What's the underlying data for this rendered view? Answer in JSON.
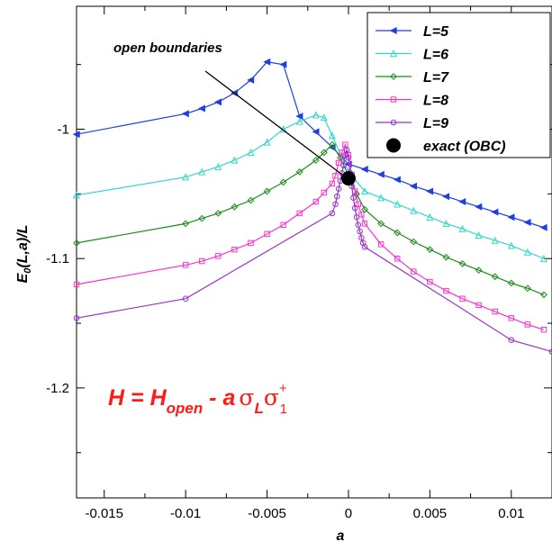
{
  "chart_data": {
    "type": "line",
    "xlabel": "a",
    "ylabel": "E0(L,a)/L",
    "xlim": [
      -0.0167,
      0.0125
    ],
    "ylim": [
      -1.285,
      -0.905
    ],
    "x_ticks": [
      -0.015,
      -0.01,
      -0.005,
      0,
      0.005,
      0.01
    ],
    "x_tick_labels": [
      "-0.015",
      "-0.01",
      "-0.005",
      "0",
      "0.005",
      "0.01"
    ],
    "y_ticks": [
      -1.0,
      -1.1,
      -1.2
    ],
    "y_tick_labels": [
      "-1",
      "-1.1",
      "-1.2"
    ],
    "legend_position": "top-right",
    "series": [
      {
        "name": "L=5",
        "color": "#1f3fe0",
        "marker": "triangle-left",
        "x": [
          -0.0167,
          -0.01,
          -0.009,
          -0.008,
          -0.007,
          -0.006,
          -0.005,
          -0.004,
          -0.003,
          -0.002,
          -0.001,
          0,
          0.001,
          0.002,
          0.003,
          0.004,
          0.005,
          0.006,
          0.007,
          0.008,
          0.009,
          0.01,
          0.011,
          0.012
        ],
        "y": [
          -1.004,
          -0.988,
          -0.984,
          -0.979,
          -0.972,
          -0.962,
          -0.948,
          -0.95,
          -0.99,
          -1.002,
          -1.014,
          -1.027,
          -1.031,
          -1.035,
          -1.039,
          -1.044,
          -1.048,
          -1.052,
          -1.056,
          -1.06,
          -1.064,
          -1.068,
          -1.072,
          -1.076
        ]
      },
      {
        "name": "L=6",
        "color": "#33d6cc",
        "marker": "triangle-up",
        "x": [
          -0.0167,
          -0.01,
          -0.009,
          -0.008,
          -0.007,
          -0.006,
          -0.005,
          -0.004,
          -0.003,
          -0.002,
          -0.0015,
          -0.001,
          0,
          0.001,
          0.002,
          0.003,
          0.004,
          0.005,
          0.006,
          0.007,
          0.008,
          0.009,
          0.01,
          0.011,
          0.012
        ],
        "y": [
          -1.051,
          -1.037,
          -1.033,
          -1.029,
          -1.024,
          -1.018,
          -1.01,
          -1.0,
          -0.994,
          -0.989,
          -0.991,
          -1.005,
          -1.033,
          -1.048,
          -1.053,
          -1.058,
          -1.063,
          -1.068,
          -1.073,
          -1.077,
          -1.082,
          -1.086,
          -1.09,
          -1.095,
          -1.1
        ]
      },
      {
        "name": "L=7",
        "color": "#1a8c1a",
        "marker": "diamond",
        "x": [
          -0.0167,
          -0.01,
          -0.009,
          -0.008,
          -0.007,
          -0.006,
          -0.005,
          -0.004,
          -0.003,
          -0.002,
          -0.0015,
          -0.001,
          -0.0005,
          0,
          0.0005,
          0.001,
          0.002,
          0.003,
          0.004,
          0.005,
          0.006,
          0.007,
          0.008,
          0.009,
          0.01,
          0.011,
          0.012
        ],
        "y": [
          -1.088,
          -1.073,
          -1.069,
          -1.065,
          -1.06,
          -1.055,
          -1.048,
          -1.041,
          -1.033,
          -1.024,
          -1.018,
          -1.012,
          -1.022,
          -1.036,
          -1.05,
          -1.062,
          -1.073,
          -1.08,
          -1.087,
          -1.093,
          -1.099,
          -1.104,
          -1.109,
          -1.114,
          -1.119,
          -1.123,
          -1.128
        ]
      },
      {
        "name": "L=8",
        "color": "#ff33cc",
        "marker": "square",
        "x": [
          -0.0167,
          -0.01,
          -0.009,
          -0.008,
          -0.007,
          -0.006,
          -0.005,
          -0.004,
          -0.003,
          -0.002,
          -0.0015,
          -0.001,
          -0.0008,
          -0.0006,
          -0.0004,
          -0.0002,
          0,
          0.0002,
          0.0004,
          0.0006,
          0.0008,
          0.001,
          0.002,
          0.003,
          0.004,
          0.005,
          0.006,
          0.007,
          0.008,
          0.009,
          0.01,
          0.011,
          0.012
        ],
        "y": [
          -1.12,
          -1.105,
          -1.102,
          -1.098,
          -1.093,
          -1.088,
          -1.081,
          -1.074,
          -1.065,
          -1.056,
          -1.049,
          -1.042,
          -1.036,
          -1.026,
          -1.018,
          -1.012,
          -1.02,
          -1.035,
          -1.048,
          -1.058,
          -1.066,
          -1.073,
          -1.089,
          -1.1,
          -1.11,
          -1.118,
          -1.125,
          -1.131,
          -1.136,
          -1.141,
          -1.146,
          -1.151,
          -1.155
        ]
      },
      {
        "name": "L=9",
        "color": "#9933cc",
        "marker": "circle",
        "x": [
          -0.0167,
          -0.01,
          -0.001,
          -0.0008,
          -0.0007,
          -0.0006,
          -0.0005,
          -0.0004,
          -0.0003,
          -0.0002,
          -0.0001,
          0,
          0.0001,
          0.0002,
          0.0003,
          0.0004,
          0.0005,
          0.0006,
          0.0007,
          0.0008,
          0.0009,
          0.001,
          0.01,
          0.0125
        ],
        "y": [
          -1.146,
          -1.131,
          -1.065,
          -1.058,
          -1.052,
          -1.046,
          -1.04,
          -1.034,
          -1.028,
          -1.02,
          -1.016,
          -1.022,
          -1.034,
          -1.044,
          -1.053,
          -1.061,
          -1.068,
          -1.074,
          -1.079,
          -1.084,
          -1.088,
          -1.091,
          -1.163,
          -1.172
        ]
      },
      {
        "name": "exact (OBC)",
        "color": "#000000",
        "marker": "filled-circle",
        "x": [
          0
        ],
        "y": [
          -1.038
        ]
      }
    ],
    "annotations": [
      {
        "text": "open boundaries",
        "arrow_to": {
          "x": -0.0001,
          "y": -1.03
        }
      }
    ],
    "formula": {
      "H": "H",
      "eq": " = ",
      "Hmain": "H",
      "open": "open",
      "minus": " - ",
      "a": "a",
      "sigma": "σ",
      "L": "L",
      "sigma2": "σ",
      "plus": "+",
      "one": "1"
    }
  }
}
